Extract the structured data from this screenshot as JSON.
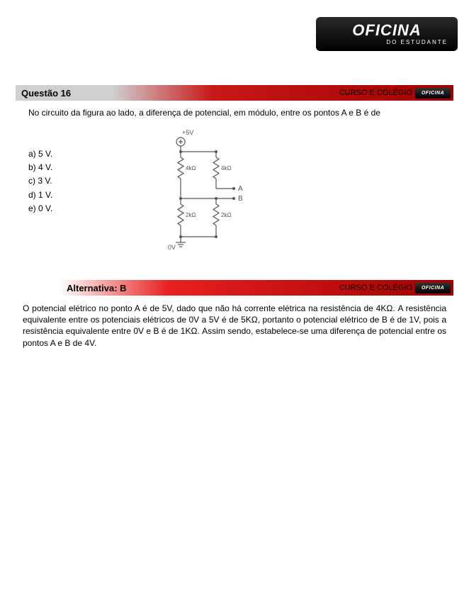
{
  "brand": {
    "main": "OFICINA",
    "sub": "DO ESTUDANTE",
    "mini": "OFICINA"
  },
  "question": {
    "label": "Questão 16",
    "course_label": "CURSO E COLÉGIO",
    "text": "No circuito da figura ao lado, a diferença de potencial, em módulo, entre os pontos A e B é de",
    "options": {
      "a": "a) 5 V.",
      "b": "b) 4 V.",
      "c": "c) 3 V.",
      "d": "d) 1 V.",
      "e": "e) 0 V."
    }
  },
  "circuit": {
    "top_label": "+5V",
    "bottom_label": "0V",
    "r_top_left": "4kΩ",
    "r_top_right": "4kΩ",
    "r_bot_left": "2kΩ",
    "r_bot_right": "2kΩ",
    "point_a": "A",
    "point_b": "B",
    "stroke": "#555555",
    "text_color": "#555555",
    "bg": "#ffffff"
  },
  "answer": {
    "label": "Alternativa: B",
    "course_label": "CURSO E COLÉGIO",
    "explanation": "O potencial elétrico no ponto A é de 5V, dado que não há corrente elétrica na resistência de 4KΩ. A resistência equivalente entre os potenciais elétricos de 0V a 5V é de 5KΩ, portanto o potencial elétrico de B é de 1V, pois a resistência equivalente entre 0V e B é de 1KΩ. Assim sendo, estabelece-se uma diferença de potencial entre os pontos A e B de 4V."
  },
  "colors": {
    "header_gray": "#d0d0d0",
    "header_red_light": "#c81818",
    "header_red_dark": "#a00000",
    "logo_bg_top": "#2a2a2a",
    "logo_bg_bot": "#000000",
    "page_bg": "#ffffff",
    "text": "#000000"
  },
  "typography": {
    "body_fontsize": 12,
    "header_fontsize": 13,
    "logo_fontsize": 22,
    "logo_sub_fontsize": 8
  }
}
